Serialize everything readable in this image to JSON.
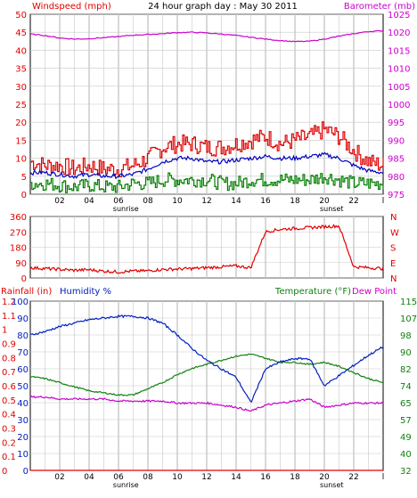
{
  "header": {
    "left_title": "Windspeed (mph)",
    "center_title": "24 hour graph day : May 30 2011",
    "right_title": "Barometer (mb)"
  },
  "x_axis": {
    "tick_labels": [
      "02",
      "04",
      "06",
      "08",
      "10",
      "12",
      "14",
      "16",
      "18",
      "20",
      "22",
      "l"
    ],
    "sunrise_label": "sunrise",
    "sunset_label": "sunset"
  },
  "colors": {
    "windspeed": "#e00000",
    "wind_avg": "#0000c0",
    "wind_low": "#008000",
    "barometer": "#cc00cc",
    "direction": "#e00000",
    "rainfall": "#e00000",
    "humidity": "#0020c0",
    "temperature": "#108010",
    "dew_point": "#cc00cc",
    "grid": "#c8c8c8",
    "frame": "#000000"
  },
  "chart_data": [
    {
      "type": "line",
      "title": "24 hour graph day : May 30 2011",
      "x": [
        0,
        1,
        2,
        3,
        4,
        5,
        6,
        7,
        8,
        9,
        10,
        11,
        12,
        13,
        14,
        15,
        16,
        17,
        18,
        19,
        20,
        21,
        22,
        23,
        24
      ],
      "y_left": {
        "label": "Windspeed (mph)",
        "ylim": [
          0,
          50
        ],
        "ticks": [
          0,
          5,
          10,
          15,
          20,
          25,
          30,
          35,
          40,
          45,
          50
        ]
      },
      "y_right": {
        "label": "Barometer (mb)",
        "ylim": [
          975,
          1025
        ],
        "ticks": [
          975,
          980,
          985,
          990,
          995,
          1000,
          1005,
          1010,
          1015,
          1020,
          1025
        ]
      },
      "series": [
        {
          "key": "gust",
          "axis": "left",
          "values": [
            9,
            8,
            8,
            7,
            8,
            7,
            7,
            8,
            10,
            13,
            14,
            14,
            13,
            13,
            14,
            15,
            16,
            14,
            15,
            16,
            18,
            16,
            12,
            9,
            8
          ]
        },
        {
          "key": "avg",
          "axis": "left",
          "values": [
            6,
            6,
            5.5,
            5,
            5.5,
            5,
            5,
            5.5,
            7,
            9,
            10,
            10,
            9,
            9,
            9.5,
            10,
            10.5,
            10,
            10,
            10.5,
            11,
            10,
            8,
            6.5,
            6
          ]
        },
        {
          "key": "low",
          "axis": "left",
          "values": [
            3,
            3,
            2.5,
            2,
            2.5,
            2,
            2,
            3,
            3,
            4,
            4,
            4,
            4,
            3,
            3,
            4,
            4,
            4,
            4,
            4,
            5,
            4,
            3,
            3,
            3
          ]
        },
        {
          "key": "baro",
          "axis": "right",
          "values": [
            1019.5,
            1019.1,
            1018.4,
            1018.1,
            1018.2,
            1018.5,
            1018.8,
            1019.2,
            1019.4,
            1019.6,
            1019.9,
            1020.0,
            1019.8,
            1019.5,
            1019.1,
            1018.6,
            1018.1,
            1017.7,
            1017.4,
            1017.5,
            1018.1,
            1018.9,
            1019.6,
            1020.2,
            1020.4
          ]
        }
      ]
    },
    {
      "type": "line",
      "ylabels_left": [
        "360",
        "270",
        "180",
        "90",
        "0"
      ],
      "ylabels_right": [
        "N",
        "W",
        "S",
        "E",
        "N"
      ],
      "ylim": [
        0,
        360
      ],
      "x": [
        0,
        1,
        2,
        3,
        4,
        5,
        6,
        7,
        8,
        9,
        10,
        11,
        12,
        13,
        14,
        15,
        16,
        17,
        18,
        19,
        20,
        21,
        22,
        23,
        24
      ],
      "series": [
        {
          "key": "dir",
          "values": [
            60,
            55,
            50,
            45,
            48,
            40,
            35,
            40,
            42,
            50,
            52,
            55,
            60,
            65,
            70,
            60,
            270,
            285,
            290,
            295,
            300,
            305,
            65,
            60,
            55
          ]
        }
      ]
    },
    {
      "type": "line",
      "y_left_rain": {
        "label": "Rainfall (in)",
        "ticks": [
          "0",
          "0.1",
          "0.2",
          "0.3",
          "0.4",
          "0.5",
          "0.6",
          "0.7",
          "0.8",
          "0.9",
          "1",
          "1.1",
          "1.2"
        ],
        "ylim": [
          0,
          1.2
        ]
      },
      "y_left_humidity": {
        "label": "Humidity %",
        "ticks": [
          "0",
          "10",
          "20",
          "30",
          "40",
          "50",
          "60",
          "70",
          "80",
          "90",
          "100"
        ],
        "ylim": [
          0,
          100
        ]
      },
      "y_right": {
        "label": "Temperature (°F)",
        "label2": "Dew Point",
        "ticks": [
          "32",
          "40",
          "49",
          "57",
          "65",
          "74",
          "82",
          "90",
          "98",
          "107",
          "115"
        ],
        "ylim": [
          32,
          115
        ]
      },
      "x": [
        0,
        1,
        2,
        3,
        4,
        5,
        6,
        7,
        8,
        9,
        10,
        11,
        12,
        13,
        14,
        15,
        16,
        17,
        18,
        19,
        20,
        21,
        22,
        23,
        24
      ],
      "series": [
        {
          "key": "humidity",
          "axis": "humidity",
          "values": [
            80,
            82,
            85,
            87,
            89,
            90,
            91,
            91,
            90,
            87,
            80,
            72,
            65,
            60,
            55,
            40,
            60,
            64,
            66,
            66,
            50,
            56,
            62,
            68,
            73
          ]
        },
        {
          "key": "temp",
          "axis": "temp",
          "values": [
            78,
            77,
            75,
            73,
            71,
            70,
            69,
            69,
            72,
            75,
            79,
            82,
            84,
            86,
            88,
            89,
            87,
            85,
            85,
            84,
            85,
            83,
            80,
            77,
            75
          ]
        },
        {
          "key": "dew",
          "axis": "temp",
          "values": [
            68,
            68,
            67,
            67,
            67,
            67,
            66,
            66,
            66,
            66,
            65,
            65,
            65,
            64,
            63,
            61,
            64,
            65,
            66,
            67,
            63,
            64,
            65,
            65,
            65
          ]
        },
        {
          "key": "rain",
          "axis": "rain",
          "values": [
            0,
            0,
            0,
            0,
            0,
            0,
            0,
            0,
            0,
            0,
            0,
            0,
            0,
            0,
            0,
            0,
            0,
            0,
            0,
            0,
            0,
            0,
            0,
            0,
            0
          ]
        }
      ]
    }
  ],
  "rain_header": {
    "rain_label": "Rainfall (in)",
    "humidity_label": "Humidity %",
    "temp_label": "Temperature (°F)",
    "dew_label": "Dew Point"
  }
}
